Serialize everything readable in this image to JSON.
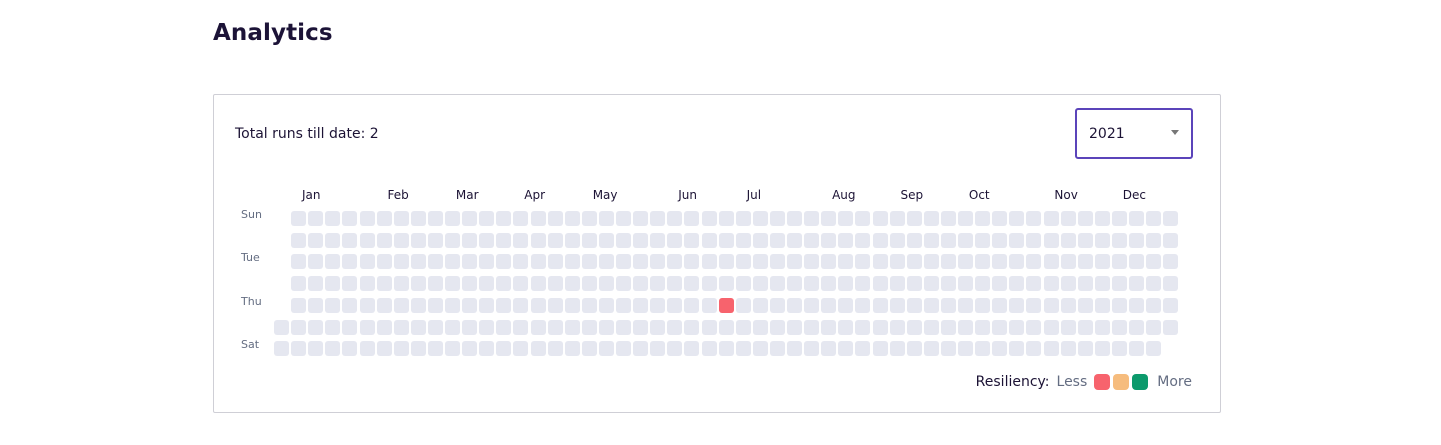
{
  "page": {
    "title": "Analytics"
  },
  "card": {
    "total_runs_label": "Total runs till date: 2",
    "year_select": {
      "selected": "2021"
    },
    "heatmap": {
      "months": [
        "Jan",
        "Feb",
        "Mar",
        "Apr",
        "May",
        "Jun",
        "Jul",
        "Aug",
        "Sep",
        "Oct",
        "Nov",
        "Dec"
      ],
      "day_labels": [
        "Sun",
        "Tue",
        "Thu",
        "Sat"
      ],
      "year": 2021,
      "empty_color": "#e5e7f0",
      "highlighted_days": [
        {
          "date": "2021-07-01",
          "color": "#f7636d"
        }
      ]
    },
    "legend": {
      "title": "Resiliency:",
      "less_label": "Less",
      "more_label": "More",
      "colors": [
        "#f7636d",
        "#f6bc7d",
        "#0c9a6c"
      ]
    }
  }
}
